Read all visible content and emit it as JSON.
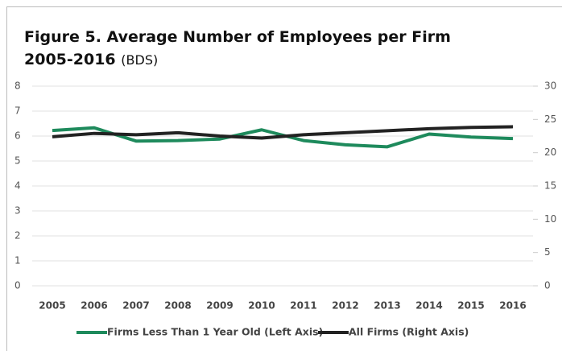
{
  "chart_data": {
    "type": "line",
    "title": "Figure 5. Average Number of Employees per Firm",
    "subtitle": "2005-2016",
    "source": "(BDS)",
    "categories": [
      "2005",
      "2006",
      "2007",
      "2008",
      "2009",
      "2010",
      "2011",
      "2012",
      "2013",
      "2014",
      "2015",
      "2016"
    ],
    "series": [
      {
        "name": "Firms Less Than 1 Year Old (Left Axis)",
        "color": "#1e8a5c",
        "axis": "y",
        "values": [
          6.22,
          6.33,
          5.8,
          5.82,
          5.88,
          6.25,
          5.82,
          5.65,
          5.57,
          6.08,
          5.96,
          5.9
        ]
      },
      {
        "name": "All Firms (Right Axis)",
        "color": "#222222",
        "axis": "y2",
        "values": [
          22.4,
          22.9,
          22.7,
          23.0,
          22.5,
          22.2,
          22.7,
          23.0,
          23.3,
          23.6,
          23.8,
          23.9
        ]
      }
    ],
    "ylim": [
      0,
      8
    ],
    "yticks": [
      0,
      1,
      2,
      3,
      4,
      5,
      6,
      7,
      8
    ],
    "y2lim": [
      0,
      30
    ],
    "y2ticks": [
      0,
      5,
      10,
      15,
      20,
      25,
      30
    ],
    "grid": true
  }
}
